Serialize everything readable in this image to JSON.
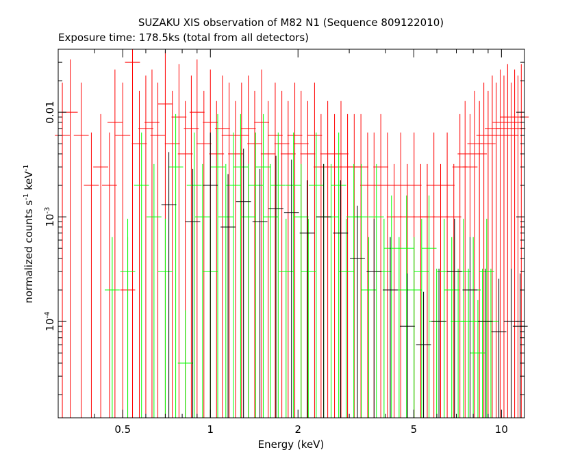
{
  "chart_data": {
    "type": "scatter",
    "title": "SUZAKU XIS observation of M82 N1 (Sequence 809122010)",
    "subtitle": "Exposure time: 178.5ks (total from all detectors)",
    "xlabel": "Energy (keV)",
    "ylabel_base": "normalized counts s",
    "ylabel_unit": "keV",
    "ylabel_exponent": "-1",
    "x_scale": "log",
    "y_scale": "log",
    "xlim": [
      0.3,
      12.0
    ],
    "ylim": [
      1.2e-05,
      0.04
    ],
    "x_ticks": [
      {
        "value": 0.5,
        "label": "0.5"
      },
      {
        "value": 1,
        "label": "1"
      },
      {
        "value": 2,
        "label": "2"
      },
      {
        "value": 5,
        "label": "5"
      },
      {
        "value": 10,
        "label": "10"
      }
    ],
    "y_ticks": [
      {
        "value": 0.0001,
        "base": "10",
        "exp": "-4"
      },
      {
        "value": 0.001,
        "base": "10",
        "exp": "-3"
      },
      {
        "value": 0.01,
        "base": "0.01",
        "exp": ""
      }
    ],
    "grid": false,
    "legend": "none",
    "series": [
      {
        "color": "#ff0000",
        "points": [
          [
            0.31,
            0.006
          ],
          [
            0.33,
            0.01
          ],
          [
            0.36,
            0.006
          ],
          [
            0.39,
            0.002
          ],
          [
            0.42,
            0.003
          ],
          [
            0.45,
            0.002
          ],
          [
            0.47,
            0.008
          ],
          [
            0.5,
            0.006
          ],
          [
            0.52,
            0.0002
          ],
          [
            0.54,
            0.03
          ],
          [
            0.57,
            0.005
          ],
          [
            0.6,
            0.007
          ],
          [
            0.63,
            0.008
          ],
          [
            0.66,
            0.006
          ],
          [
            0.7,
            0.012
          ],
          [
            0.74,
            0.005
          ],
          [
            0.78,
            0.009
          ],
          [
            0.82,
            0.004
          ],
          [
            0.86,
            0.007
          ],
          [
            0.9,
            0.01
          ],
          [
            0.95,
            0.005
          ],
          [
            1.0,
            0.008
          ],
          [
            1.05,
            0.004
          ],
          [
            1.1,
            0.007
          ],
          [
            1.16,
            0.006
          ],
          [
            1.22,
            0.004
          ],
          [
            1.28,
            0.006
          ],
          [
            1.35,
            0.007
          ],
          [
            1.42,
            0.005
          ],
          [
            1.5,
            0.008
          ],
          [
            1.58,
            0.004
          ],
          [
            1.67,
            0.006
          ],
          [
            1.76,
            0.005
          ],
          [
            1.85,
            0.004
          ],
          [
            1.95,
            0.006
          ],
          [
            2.05,
            0.005
          ],
          [
            2.16,
            0.004
          ],
          [
            2.28,
            0.006
          ],
          [
            2.4,
            0.003
          ],
          [
            2.53,
            0.004
          ],
          [
            2.67,
            0.003
          ],
          [
            2.81,
            0.004
          ],
          [
            2.96,
            0.003
          ],
          [
            3.12,
            0.003
          ],
          [
            3.29,
            0.003
          ],
          [
            3.47,
            0.002
          ],
          [
            3.65,
            0.002
          ],
          [
            3.85,
            0.003
          ],
          [
            4.06,
            0.002
          ],
          [
            4.28,
            0.001
          ],
          [
            4.51,
            0.002
          ],
          [
            4.75,
            0.001
          ],
          [
            5.01,
            0.002
          ],
          [
            5.28,
            0.001
          ],
          [
            5.56,
            0.001
          ],
          [
            5.86,
            0.002
          ],
          [
            6.18,
            0.001
          ],
          [
            6.51,
            0.002
          ],
          [
            6.86,
            0.001
          ],
          [
            7.2,
            0.003
          ],
          [
            7.5,
            0.004
          ],
          [
            7.8,
            0.003
          ],
          [
            8.1,
            0.005
          ],
          [
            8.4,
            0.004
          ],
          [
            8.7,
            0.006
          ],
          [
            9.0,
            0.005
          ],
          [
            9.3,
            0.007
          ],
          [
            9.6,
            0.006
          ],
          [
            9.9,
            0.008
          ],
          [
            10.2,
            0.007
          ],
          [
            10.5,
            0.009
          ],
          [
            10.8,
            0.006
          ],
          [
            11.1,
            0.008
          ],
          [
            11.4,
            0.007
          ],
          [
            11.7,
            0.009
          ]
        ]
      },
      {
        "color": "#00ff00",
        "points": [
          [
            0.46,
            0.0002
          ],
          [
            0.52,
            0.0003
          ],
          [
            0.58,
            0.002
          ],
          [
            0.64,
            0.001
          ],
          [
            0.7,
            0.0003
          ],
          [
            0.76,
            0.003
          ],
          [
            0.82,
            4e-05
          ],
          [
            0.88,
            0.002
          ],
          [
            0.94,
            0.001
          ],
          [
            1.0,
            0.0003
          ],
          [
            1.06,
            0.003
          ],
          [
            1.13,
            0.001
          ],
          [
            1.2,
            0.002
          ],
          [
            1.27,
            0.003
          ],
          [
            1.35,
            0.001
          ],
          [
            1.43,
            0.002
          ],
          [
            1.52,
            0.003
          ],
          [
            1.61,
            0.001
          ],
          [
            1.71,
            0.002
          ],
          [
            1.82,
            0.0003
          ],
          [
            1.93,
            0.002
          ],
          [
            2.05,
            0.001
          ],
          [
            2.17,
            0.0003
          ],
          [
            2.31,
            0.002
          ],
          [
            2.45,
            0.001
          ],
          [
            2.6,
            0.001
          ],
          [
            2.76,
            0.002
          ],
          [
            2.93,
            0.0003
          ],
          [
            3.11,
            0.001
          ],
          [
            3.3,
            0.001
          ],
          [
            3.5,
            0.0002
          ],
          [
            3.72,
            0.001
          ],
          [
            3.95,
            0.0003
          ],
          [
            4.19,
            0.0005
          ],
          [
            4.45,
            0.0002
          ],
          [
            4.72,
            0.0005
          ],
          [
            5.01,
            0.0002
          ],
          [
            5.32,
            0.0003
          ],
          [
            5.64,
            0.0005
          ],
          [
            5.99,
            0.0001
          ],
          [
            6.36,
            0.0003
          ],
          [
            6.75,
            0.0002
          ],
          [
            7.1,
            0.0001
          ],
          [
            7.4,
            0.0003
          ],
          [
            7.7,
            0.0001
          ],
          [
            8.0,
            0.0002
          ],
          [
            8.3,
            5e-05
          ],
          [
            8.6,
            0.0001
          ],
          [
            8.9,
            0.0003
          ],
          [
            9.2,
            0.0001
          ]
        ]
      },
      {
        "color": "#000000",
        "points": [
          [
            0.72,
            0.0013
          ],
          [
            0.87,
            0.0009
          ],
          [
            1.0,
            0.002
          ],
          [
            1.15,
            0.0008
          ],
          [
            1.3,
            0.0014
          ],
          [
            1.48,
            0.0009
          ],
          [
            1.68,
            0.0012
          ],
          [
            1.9,
            0.0011
          ],
          [
            2.15,
            0.0007
          ],
          [
            2.45,
            0.001
          ],
          [
            2.8,
            0.0007
          ],
          [
            3.2,
            0.0004
          ],
          [
            3.65,
            0.0003
          ],
          [
            4.15,
            0.0002
          ],
          [
            4.75,
            9e-05
          ],
          [
            5.4,
            6e-05
          ],
          [
            6.1,
            0.0001
          ],
          [
            6.9,
            0.0003
          ],
          [
            7.8,
            0.0002
          ],
          [
            8.8,
            0.0001
          ],
          [
            9.8,
            8e-05
          ],
          [
            10.8,
            0.0001
          ],
          [
            11.6,
            9e-05
          ]
        ]
      }
    ]
  }
}
